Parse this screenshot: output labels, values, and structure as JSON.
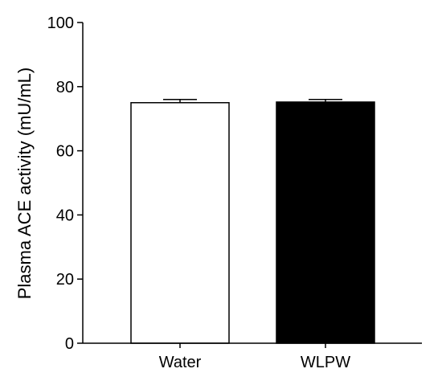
{
  "chart_data": {
    "type": "bar",
    "title": "",
    "xlabel": "",
    "ylabel": "Plasma ACE activity (mU/mL)",
    "categories": [
      "Water",
      "WLPW"
    ],
    "series": [
      {
        "values": [
          75,
          75.2
        ],
        "errors": [
          1.0,
          0.8
        ],
        "fills": [
          "#ffffff",
          "#000000"
        ]
      }
    ],
    "ylim": [
      0,
      100
    ],
    "yticks": [
      0,
      20,
      40,
      60,
      80,
      100
    ],
    "grid": false,
    "legend": "none"
  }
}
